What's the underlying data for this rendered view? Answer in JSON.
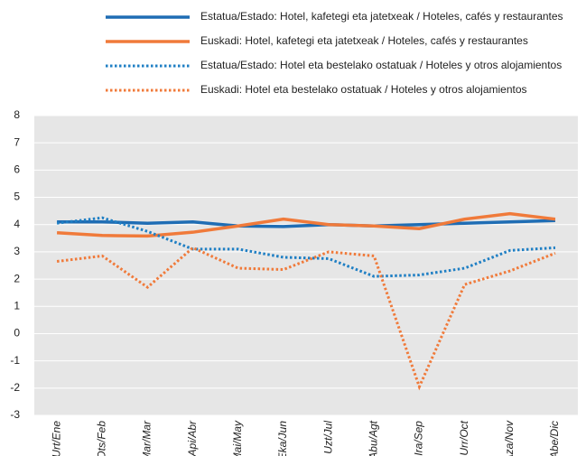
{
  "chart_data": {
    "type": "line",
    "categories": [
      "Urt/Ene",
      "Ots/Feb",
      "Mar/Mar",
      "Api/Abr",
      "Mai/May",
      "Eka/Jun",
      "Uzt/Jul",
      "Abu/Agt",
      "Ira/Sep",
      "Urr/Oct",
      "Aza/Nov",
      "Abe/Dic"
    ],
    "series": [
      {
        "name": "Estatua/Estado: Hotel, kafetegi eta jatetxeak / Hoteles, cafés y restaurantes",
        "color": "#1f6db4",
        "style": "solid",
        "values": [
          4.1,
          4.1,
          4.05,
          4.1,
          3.95,
          3.93,
          4.0,
          3.95,
          4.0,
          4.05,
          4.1,
          4.15
        ]
      },
      {
        "name": "Euskadi: Hotel, kafetegi eta jatetxeak / Hoteles, cafés y restaurantes",
        "color": "#f07a3a",
        "style": "solid",
        "values": [
          3.7,
          3.6,
          3.58,
          3.72,
          3.95,
          4.2,
          4.0,
          3.95,
          3.85,
          4.2,
          4.4,
          4.2
        ]
      },
      {
        "name": "Estatua/Estado: Hotel eta bestelako ostatuak / Hoteles y otros alojamientos",
        "color": "#1f7fc4",
        "style": "dotted",
        "values": [
          4.05,
          4.25,
          3.75,
          3.1,
          3.1,
          2.8,
          2.75,
          2.1,
          2.15,
          2.4,
          3.05,
          3.15
        ]
      },
      {
        "name": "Euskadi: Hotel eta bestelako ostatuak / Hoteles y otros alojamientos",
        "color": "#f07a3a",
        "style": "dotted",
        "values": [
          2.65,
          2.85,
          1.7,
          3.15,
          2.4,
          2.35,
          3.0,
          2.85,
          -1.95,
          1.8,
          2.3,
          2.95
        ]
      }
    ],
    "ylim": [
      -3,
      8
    ],
    "yticks": [
      -3,
      -2,
      -1,
      0,
      1,
      2,
      3,
      4,
      5,
      6,
      7,
      8
    ],
    "grid": true
  }
}
